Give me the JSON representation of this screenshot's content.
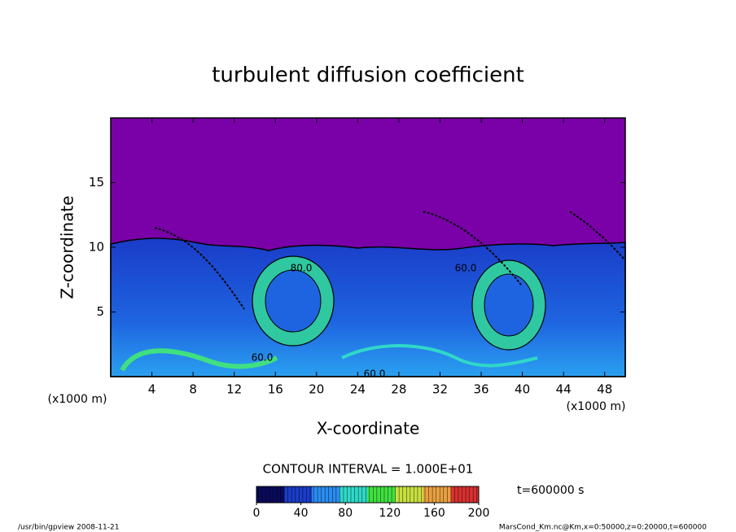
{
  "chart_data": {
    "type": "contour",
    "title": "turbulent diffusion coefficient",
    "x_label": "X-coordinate",
    "y_label": "Z-coordinate",
    "x_unit": "(x1000 m)",
    "y_unit": "(x1000 m)",
    "xlim": [
      0,
      50
    ],
    "xticks": [
      4,
      8,
      12,
      16,
      20,
      24,
      28,
      32,
      36,
      40,
      44,
      48
    ],
    "ylim": [
      0,
      20
    ],
    "yticks": [
      5,
      10,
      15
    ],
    "contour_labels": [
      "60.0",
      "60.0",
      "80.0",
      "60.0"
    ],
    "contour_interval_text": "CONTOUR INTERVAL = 1.000E+01",
    "time_text": "t=600000 s",
    "colorbar": {
      "lim": [
        0,
        200
      ],
      "ticks": [
        0,
        40,
        80,
        120,
        160,
        200
      ],
      "colors": [
        "#0a0a5a",
        "#1a3cc8",
        "#2a8cf0",
        "#30d8c8",
        "#40e040",
        "#c8e040",
        "#e8a040",
        "#d83030"
      ]
    },
    "footer_left": "/usr/bin/gpview   2008-11-21",
    "footer_right": "MarsCond_Km.nc@Km,x=0:50000,z=0:20000,t=600000"
  }
}
